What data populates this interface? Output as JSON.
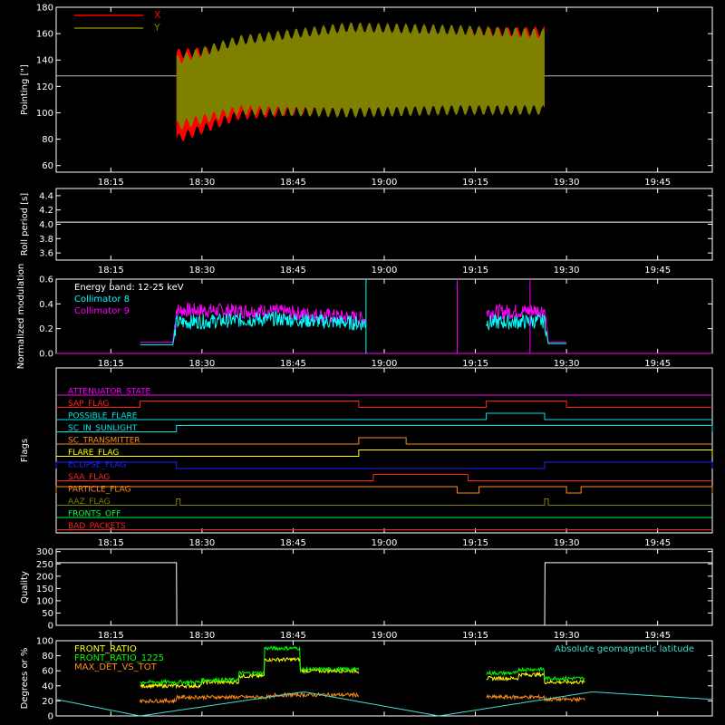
{
  "colors": {
    "background": "#000000",
    "axes": "#ffffff",
    "x_pointing": "#ff0000",
    "y_pointing": "#808000",
    "collimator8": "#00ffff",
    "collimator9": "#ff00ff",
    "front_ratio": "#ffff00",
    "front_ratio_1225": "#00ff00",
    "max_det": "#ff8c1a",
    "geomag": "#40e0d0"
  },
  "time_ticks": [
    "18:15",
    "18:30",
    "18:45",
    "19:00",
    "19:15",
    "19:30",
    "19:45"
  ],
  "chart_data": [
    {
      "type": "line",
      "panel": "pointing",
      "ylabel": "Pointing [\"]",
      "ylim": [
        55,
        180
      ],
      "yticks": [
        "60",
        "80",
        "100",
        "120",
        "140",
        "160",
        "180"
      ],
      "legend": [
        "X",
        "Y"
      ],
      "legend_placement": "top-left",
      "reference_level": 128,
      "series": [
        {
          "name": "X",
          "envelope_upper": [
            [
              18.43,
              145
            ],
            [
              18.6,
              148
            ],
            [
              18.9,
              157
            ],
            [
              19.2,
              160
            ],
            [
              19.44,
              162
            ]
          ],
          "envelope_lower": [
            [
              18.43,
              80
            ],
            [
              18.6,
              98
            ],
            [
              18.9,
              105
            ],
            [
              19.2,
              110
            ],
            [
              19.44,
              112
            ]
          ]
        },
        {
          "name": "Y",
          "envelope_upper": [
            [
              18.43,
              140
            ],
            [
              18.6,
              155
            ],
            [
              18.9,
              165
            ],
            [
              19.2,
              163
            ],
            [
              19.44,
              160
            ]
          ],
          "envelope_lower": [
            [
              18.43,
              90
            ],
            [
              18.6,
              102
            ],
            [
              18.9,
              100
            ],
            [
              19.2,
              102
            ],
            [
              19.44,
              102
            ]
          ]
        }
      ]
    },
    {
      "type": "line",
      "panel": "roll",
      "ylabel": "Roll period [s]",
      "ylim": [
        3.5,
        4.5
      ],
      "yticks": [
        "3.6",
        "3.8",
        "4.0",
        "4.2",
        "4.4"
      ],
      "series": [
        {
          "values_const": 4.03
        }
      ]
    },
    {
      "type": "line",
      "panel": "modulation",
      "ylabel": "Normalized modulation",
      "ylim": [
        0,
        0.6
      ],
      "yticks": [
        "0.0",
        "0.2",
        "0.4",
        "0.6"
      ],
      "legend": [
        "Energy band: 12-25 keV",
        "Collimator 8",
        "Collimator 9"
      ],
      "series": [
        {
          "name": "Collimator 8",
          "segments": [
            [
              [
                18.33,
                0.07
              ],
              [
                18.42,
                0.07
              ],
              [
                18.43,
                0.25
              ],
              [
                18.7,
                0.28
              ],
              [
                18.95,
                0.24
              ]
            ],
            [
              [
                19.28,
                0.25
              ],
              [
                19.44,
                0.26
              ],
              [
                19.45,
                0.08
              ],
              [
                19.5,
                0.08
              ]
            ]
          ]
        },
        {
          "name": "Collimator 9",
          "segments": [
            [
              [
                18.33,
                0.09
              ],
              [
                18.42,
                0.09
              ],
              [
                18.43,
                0.35
              ],
              [
                18.7,
                0.34
              ],
              [
                18.95,
                0.28
              ]
            ],
            [
              [
                19.28,
                0.33
              ],
              [
                19.44,
                0.35
              ],
              [
                19.45,
                0.09
              ],
              [
                19.5,
                0.09
              ]
            ]
          ]
        }
      ]
    },
    {
      "type": "line",
      "panel": "flags",
      "ylabel": "Flags",
      "flags": [
        {
          "name": "ATTENUATOR_STATE",
          "color": "#ff00ff",
          "high": []
        },
        {
          "name": "SAP_FLAG",
          "color": "#ff2020",
          "high": [
            [
              18.33,
              18.93
            ],
            [
              19.28,
              19.5
            ]
          ]
        },
        {
          "name": "POSSIBLE_FLARE",
          "color": "#00e5e5",
          "high": [
            [
              19.28,
              19.44
            ]
          ]
        },
        {
          "name": "SC_IN_SUNLIGHT",
          "color": "#00e5e5",
          "high": [
            [
              18.43,
              20
            ]
          ]
        },
        {
          "name": "SC_TRANSMITTER",
          "color": "#ff8c1a",
          "high": [
            [
              18.93,
              19.06
            ]
          ]
        },
        {
          "name": "FLARE_FLAG",
          "color": "#ffff00",
          "high": [
            [
              18.93,
              20
            ]
          ]
        },
        {
          "name": "ECLIPSE_FLAG",
          "color": "#2020ff",
          "high": [
            [
              15,
              18.43
            ],
            [
              19.44,
              20
            ]
          ]
        },
        {
          "name": "SAA_FLAG",
          "color": "#ff2020",
          "high": [
            [
              18.97,
              19.23
            ]
          ]
        },
        {
          "name": "PARTICLE_FLAG",
          "color": "#ff8c1a",
          "high": [
            [
              15,
              19.2
            ],
            [
              19.26,
              19.5
            ],
            [
              19.54,
              20
            ]
          ]
        },
        {
          "name": "AAZ_FLAG",
          "color": "#808000",
          "high": [
            [
              18.43,
              18.44
            ],
            [
              19.44,
              19.45
            ]
          ]
        },
        {
          "name": "FRONTS_OFF",
          "color": "#00ff40",
          "high": []
        },
        {
          "name": "BAD_PACKETS",
          "color": "#ff2020",
          "high": []
        }
      ]
    },
    {
      "type": "line",
      "panel": "quality",
      "ylabel": "Quality",
      "ylim": [
        0,
        310
      ],
      "yticks": [
        "0",
        "50",
        "100",
        "150",
        "200",
        "250",
        "300"
      ],
      "series": [
        {
          "values": [
            [
              18.1,
              255
            ],
            [
              18.43,
              255
            ],
            [
              18.431,
              0
            ],
            [
              19.44,
              0
            ],
            [
              19.441,
              255
            ],
            [
              19.9,
              255
            ]
          ]
        }
      ]
    },
    {
      "type": "line",
      "panel": "ratios",
      "ylabel": "Degrees or %",
      "ylim": [
        0,
        100
      ],
      "yticks": [
        "0",
        "20",
        "40",
        "60",
        "80",
        "100"
      ],
      "legend": [
        "FRONT_RATIO",
        "FRONT_RATIO_1225",
        "MAX_DET_VS_TOT"
      ],
      "right_label": "Absolute geomagnetic latitude",
      "series": [
        {
          "name": "FRONT_RATIO",
          "segments": [
            [
              [
                18.33,
                40
              ],
              [
                18.5,
                45
              ],
              [
                18.6,
                53
              ],
              [
                18.67,
                75
              ],
              [
                18.77,
                60
              ],
              [
                18.93,
                58
              ]
            ],
            [
              [
                19.28,
                50
              ],
              [
                19.37,
                55
              ],
              [
                19.44,
                45
              ],
              [
                19.55,
                45
              ]
            ]
          ]
        },
        {
          "name": "FRONT_RATIO_1225",
          "segments": [
            [
              [
                18.33,
                45
              ],
              [
                18.5,
                48
              ],
              [
                18.6,
                57
              ],
              [
                18.67,
                90
              ],
              [
                18.77,
                62
              ],
              [
                18.93,
                63
              ]
            ],
            [
              [
                19.28,
                57
              ],
              [
                19.37,
                62
              ],
              [
                19.44,
                50
              ],
              [
                19.55,
                50
              ]
            ]
          ]
        },
        {
          "name": "MAX_DET_VS_TOT",
          "segments": [
            [
              [
                18.33,
                20
              ],
              [
                18.43,
                25
              ],
              [
                18.7,
                28
              ],
              [
                18.93,
                27
              ]
            ],
            [
              [
                19.28,
                25
              ],
              [
                19.44,
                22
              ],
              [
                19.55,
                22
              ]
            ]
          ]
        },
        {
          "name": "Absolute geomagnetic latitude",
          "values": [
            [
              18.1,
              22
            ],
            [
              18.33,
              0
            ],
            [
              18.78,
              32
            ],
            [
              19.15,
              0
            ],
            [
              19.57,
              32
            ],
            [
              19.9,
              22
            ]
          ]
        }
      ]
    }
  ]
}
